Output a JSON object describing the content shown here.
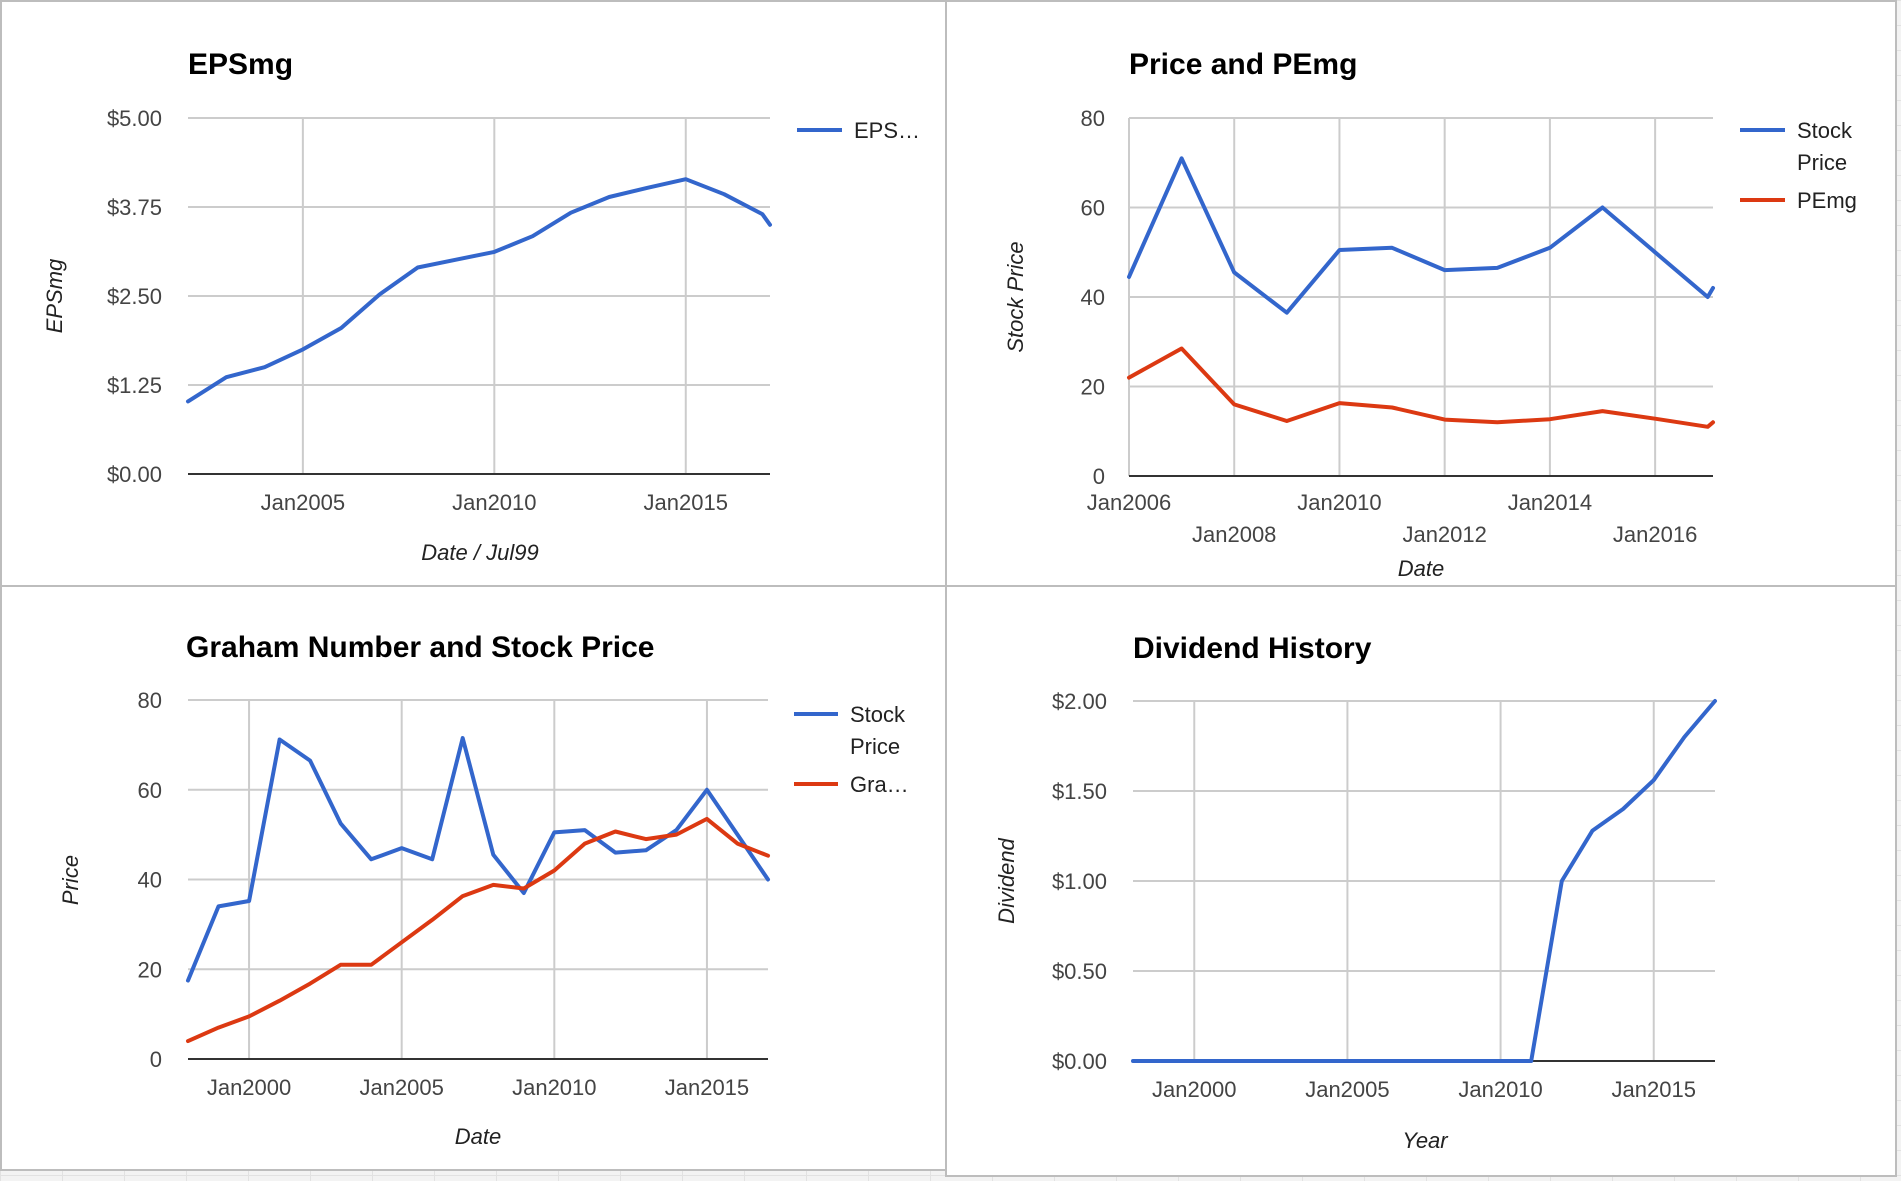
{
  "chart_data": [
    {
      "type": "line",
      "title": "EPSmg",
      "xlabel": "Date / Jul99",
      "ylabel": "EPSmg",
      "x_ticks": [
        "Jan2005",
        "Jan2010",
        "Jan2015"
      ],
      "y_ticks": [
        "$0.00",
        "$1.25",
        "$2.50",
        "$3.75",
        "$5.00"
      ],
      "xlim": [
        2002.0,
        2017.2
      ],
      "ylim": [
        0,
        5
      ],
      "grid": true,
      "legend_position": "right",
      "series": [
        {
          "name": "EPS…",
          "color": "#3366cc",
          "x": [
            2002.0,
            2003.0,
            2004.0,
            2005.0,
            2006.0,
            2007.0,
            2008.0,
            2009.0,
            2010.0,
            2011.0,
            2012.0,
            2013.0,
            2014.0,
            2015.0,
            2016.0,
            2017.0,
            2017.2
          ],
          "y": [
            1.02,
            1.36,
            1.5,
            1.75,
            2.05,
            2.52,
            2.9,
            3.01,
            3.12,
            3.34,
            3.67,
            3.89,
            4.02,
            4.14,
            3.93,
            3.65,
            3.5
          ]
        }
      ]
    },
    {
      "type": "line",
      "title": "Price and PEmg",
      "xlabel": "Date",
      "ylabel": "Stock Price",
      "x_ticks": [
        "Jan2006",
        "Jan2008",
        "Jan2010",
        "Jan2012",
        "Jan2014",
        "Jan2016"
      ],
      "y_ticks": [
        "0",
        "20",
        "40",
        "60",
        "80"
      ],
      "xlim": [
        2006.0,
        2017.1
      ],
      "ylim": [
        0,
        80
      ],
      "grid": true,
      "legend_position": "right",
      "series": [
        {
          "name": "Stock Price",
          "color": "#3366cc",
          "x": [
            2006.0,
            2007.0,
            2008.0,
            2009.0,
            2010.0,
            2011.0,
            2012.0,
            2013.0,
            2014.0,
            2015.0,
            2016.0,
            2017.0,
            2017.1
          ],
          "y": [
            44.5,
            71.0,
            45.5,
            36.5,
            50.5,
            51.0,
            46.0,
            46.5,
            51.0,
            60.0,
            50.0,
            40.0,
            42.0
          ]
        },
        {
          "name": "PEmg",
          "color": "#dc3912",
          "x": [
            2006.0,
            2007.0,
            2008.0,
            2009.0,
            2010.0,
            2011.0,
            2012.0,
            2013.0,
            2014.0,
            2015.0,
            2016.0,
            2017.0,
            2017.1
          ],
          "y": [
            22.0,
            28.5,
            16.0,
            12.3,
            16.3,
            15.3,
            12.6,
            12.0,
            12.7,
            14.5,
            12.8,
            11.0,
            12.0
          ]
        }
      ]
    },
    {
      "type": "line",
      "title": "Graham Number and Stock Price",
      "xlabel": "Date",
      "ylabel": "Price",
      "x_ticks": [
        "Jan2000",
        "Jan2005",
        "Jan2010",
        "Jan2015"
      ],
      "y_ticks": [
        "0",
        "20",
        "40",
        "60",
        "80"
      ],
      "xlim": [
        1998.0,
        2017.0
      ],
      "ylim": [
        0,
        80
      ],
      "grid": true,
      "legend_position": "right",
      "series": [
        {
          "name": "Stock Price",
          "color": "#3366cc",
          "x": [
            1998.0,
            1999.0,
            2000.0,
            2001.0,
            2002.0,
            2003.0,
            2004.0,
            2005.0,
            2006.0,
            2007.0,
            2008.0,
            2009.0,
            2010.0,
            2011.0,
            2012.0,
            2013.0,
            2014.0,
            2015.0,
            2016.0,
            2017.0
          ],
          "y": [
            17.5,
            34.0,
            35.2,
            71.2,
            66.5,
            52.5,
            44.5,
            47.0,
            44.5,
            71.5,
            45.5,
            37.0,
            50.5,
            51.0,
            46.0,
            46.5,
            51.0,
            60.0,
            50.0,
            40.0
          ]
        },
        {
          "name": "Gra…",
          "color": "#dc3912",
          "x": [
            1998.0,
            1999.0,
            2000.0,
            2001.0,
            2002.0,
            2003.0,
            2004.0,
            2005.0,
            2006.0,
            2007.0,
            2008.0,
            2009.0,
            2010.0,
            2011.0,
            2012.0,
            2013.0,
            2014.0,
            2015.0,
            2016.0,
            2017.0
          ],
          "y": [
            4.0,
            7.0,
            9.5,
            13.0,
            16.8,
            21.0,
            21.0,
            26.0,
            31.0,
            36.3,
            38.8,
            38.0,
            42.0,
            48.0,
            50.7,
            49.0,
            50.0,
            53.5,
            48.0,
            45.3
          ]
        }
      ]
    },
    {
      "type": "line",
      "title": "Dividend History",
      "xlabel": "Year",
      "ylabel": "Dividend",
      "x_ticks": [
        "Jan2000",
        "Jan2005",
        "Jan2010",
        "Jan2015"
      ],
      "y_ticks": [
        "$0.00",
        "$0.50",
        "$1.00",
        "$1.50",
        "$2.00"
      ],
      "xlim": [
        1998.0,
        2017.0
      ],
      "ylim": [
        0,
        2
      ],
      "grid": true,
      "legend_position": "none",
      "series": [
        {
          "name": "",
          "color": "#3366cc",
          "x": [
            1998.0,
            1999.0,
            2000.0,
            2001.0,
            2002.0,
            2003.0,
            2004.0,
            2005.0,
            2006.0,
            2007.0,
            2008.0,
            2009.0,
            2010.0,
            2011.0,
            2012.0,
            2013.0,
            2014.0,
            2015.0,
            2016.0,
            2017.0
          ],
          "y": [
            0,
            0,
            0,
            0,
            0,
            0,
            0,
            0,
            0,
            0,
            0,
            0,
            0,
            0,
            1.0,
            1.28,
            1.4,
            1.56,
            1.8,
            2.0
          ]
        }
      ]
    }
  ]
}
